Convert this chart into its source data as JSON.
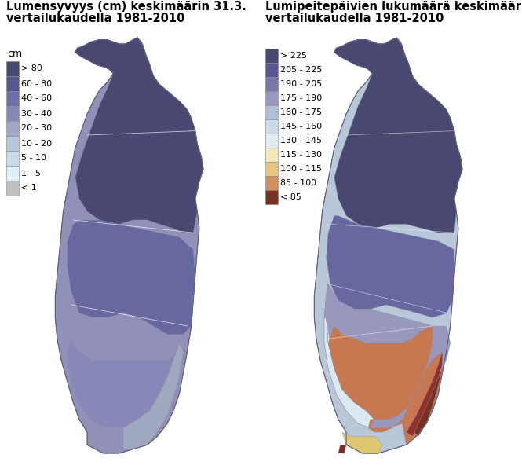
{
  "title_left_1": "Lumensyvyys (cm) keskimäärin 31.3.",
  "title_left_2": "vertailukaudella 1981-2010",
  "title_right_1": "Lumipeitepäivien lukumäärä keskimäärin",
  "title_right_2": "vertailukaudella 1981-2010",
  "legend_left_label": "cm",
  "legend_left": [
    {
      "label": "> 80",
      "color": "#484870"
    },
    {
      "label": "60 - 80",
      "color": "#585890"
    },
    {
      "label": "40 - 60",
      "color": "#7070a8"
    },
    {
      "label": "30 - 40",
      "color": "#8888b8"
    },
    {
      "label": "20 - 30",
      "color": "#a0a8c8"
    },
    {
      "label": "10 - 20",
      "color": "#b8c8dc"
    },
    {
      "label": "5 - 10",
      "color": "#c8dce8"
    },
    {
      "label": "1 - 5",
      "color": "#dceef8"
    },
    {
      "label": "< 1",
      "color": "#c0c0c0"
    }
  ],
  "legend_right": [
    {
      "label": "> 225",
      "color": "#484870"
    },
    {
      "label": "205 - 225",
      "color": "#585890"
    },
    {
      "label": "190 - 205",
      "color": "#7878a8"
    },
    {
      "label": "175 - 190",
      "color": "#9898c0"
    },
    {
      "label": "160 - 175",
      "color": "#b0c0d8"
    },
    {
      "label": "145 - 160",
      "color": "#c8dce8"
    },
    {
      "label": "130 - 145",
      "color": "#e0ecf4"
    },
    {
      "label": "115 - 130",
      "color": "#f0e8b8"
    },
    {
      "label": "100 - 115",
      "color": "#e8c880"
    },
    {
      "label": "85 - 100",
      "color": "#d09060"
    },
    {
      "label": "< 85",
      "color": "#783020"
    }
  ],
  "background_color": "#ffffff",
  "text_color": "#000000"
}
